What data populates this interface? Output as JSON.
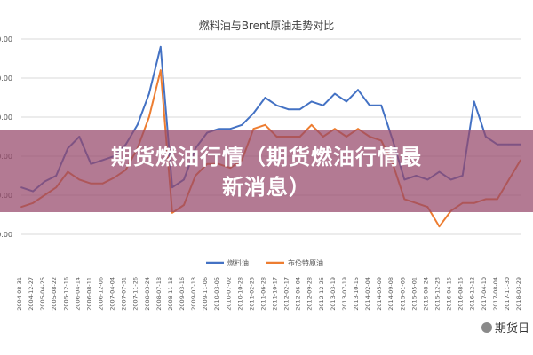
{
  "chart_data": {
    "type": "line",
    "title": "燃料油与Brent原油走势对比",
    "xlabel": "",
    "ylabel": "",
    "ylim": [
      0,
      6000
    ],
    "yticks": [
      "0.00",
      "1,000.00",
      "2,000.00",
      "3,000.00",
      "4,000.00",
      "5,000.00",
      "6,000.00"
    ],
    "yticks_shown": [
      "1,000.00",
      "2,000.00",
      "3,000.00",
      "4,000.00",
      "5,000.00",
      "6,000.00"
    ],
    "grid": true,
    "legend_position": "bottom",
    "x_labels": [
      "2004-08-31",
      "2004-12-27",
      "2005-04-25",
      "2005-08-22",
      "2005-12-16",
      "2006-04-14",
      "2006-08-11",
      "2006-12-06",
      "2007-04-04",
      "2007-07-31",
      "2007-11-26",
      "2008-03-24",
      "2008-07-18",
      "2008-11-18",
      "2009-03-16",
      "2009-07-13",
      "2009-11-06",
      "2010-03-05",
      "2010-07-02",
      "2010-10-28",
      "2011-02-25",
      "2011-06-28",
      "2011-10-17",
      "2012-02-17",
      "2012-06-04",
      "2012-09-28",
      "2012-12-25",
      "2013-03-19",
      "2013-07-19",
      "2013-10-15",
      "2014-02-04",
      "2014-05-09",
      "2014-09-08",
      "2015-01-05",
      "2015-05-01",
      "2015-08-24",
      "2015-12-23",
      "2016-04-15",
      "2016-08-15",
      "2016-12-12",
      "2017-04-10",
      "2017-08-04",
      "2017-11-30",
      "2018-03-29"
    ],
    "series": [
      {
        "name": "燃料油",
        "color": "#4472c4",
        "values": [
          2200,
          2100,
          2350,
          2500,
          3200,
          3500,
          2800,
          2900,
          3000,
          3300,
          3800,
          4600,
          5800,
          2200,
          2400,
          3200,
          3600,
          3700,
          3700,
          3800,
          4100,
          4500,
          4300,
          4200,
          4200,
          4400,
          4300,
          4600,
          4400,
          4700,
          4300,
          4300,
          3400,
          2400,
          2500,
          2400,
          2600,
          2400,
          2500,
          4400,
          3500,
          3300,
          3300,
          3300
        ]
      },
      {
        "name": "布伦特原油",
        "color": "#ed7d31",
        "values": [
          1700,
          1800,
          2000,
          2200,
          2600,
          2400,
          2300,
          2300,
          2450,
          2650,
          3200,
          4000,
          5200,
          1550,
          1750,
          2500,
          2800,
          2800,
          2700,
          2900,
          3700,
          3800,
          3500,
          3500,
          3500,
          3800,
          3500,
          3700,
          3500,
          3700,
          3500,
          3400,
          2800,
          1900,
          1800,
          1700,
          1200,
          1600,
          1800,
          1800,
          1900,
          1900,
          2400,
          2900
        ]
      }
    ]
  },
  "overlay": {
    "banner_line1": "期货燃油行情（期货燃油行情最",
    "banner_line2": "新消息）"
  },
  "watermark": "期货日"
}
